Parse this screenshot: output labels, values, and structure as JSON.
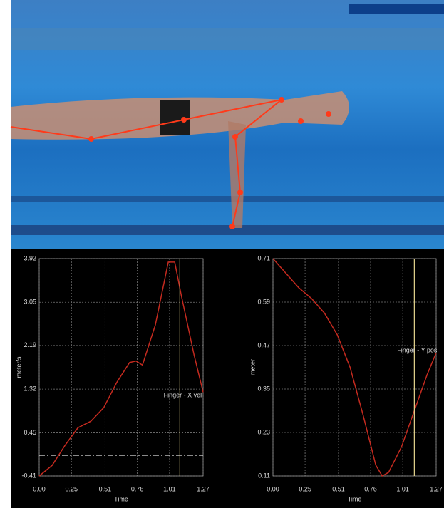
{
  "chart_data": [
    {
      "type": "line",
      "ylabel": "meter/s",
      "xlabel": "Time",
      "annotation": "Finger - X vel",
      "x": [
        0,
        0.1,
        0.2,
        0.3,
        0.4,
        0.5,
        0.6,
        0.7,
        0.75,
        0.8,
        0.9,
        1.0,
        1.05,
        1.1,
        1.2,
        1.27
      ],
      "series": [
        {
          "color": "#c42a1f",
          "values": [
            -0.41,
            -0.2,
            0.2,
            0.55,
            0.68,
            0.95,
            1.45,
            1.85,
            1.88,
            1.8,
            2.6,
            3.85,
            3.85,
            3.2,
            2.0,
            1.26
          ]
        }
      ],
      "xlim": [
        0,
        1.27
      ],
      "xticks": [
        {
          "value": 0,
          "label": "0.00"
        },
        0.25,
        0.51,
        0.76,
        1.01,
        1.27
      ],
      "ylim": [
        -0.41,
        3.92
      ],
      "yticks": [
        -0.41,
        0.45,
        1.32,
        2.19,
        3.05,
        3.92
      ],
      "cursor_x": 1.09,
      "ref_y": 0,
      "grid": true
    },
    {
      "type": "line",
      "ylabel": "meter",
      "xlabel": "Time",
      "annotation": "Finger - Y pos",
      "x": [
        0,
        0.1,
        0.2,
        0.3,
        0.4,
        0.5,
        0.6,
        0.7,
        0.8,
        0.85,
        0.9,
        1.0,
        1.1,
        1.2,
        1.27
      ],
      "series": [
        {
          "color": "#c42a1f",
          "values": [
            0.71,
            0.67,
            0.63,
            0.6,
            0.56,
            0.5,
            0.41,
            0.28,
            0.14,
            0.11,
            0.12,
            0.19,
            0.29,
            0.39,
            0.45
          ]
        }
      ],
      "xlim": [
        0,
        1.27
      ],
      "xticks": [
        {
          "value": 0,
          "label": "0.00"
        },
        0.25,
        0.51,
        0.76,
        1.01,
        1.27
      ],
      "ylim": [
        0.11,
        0.71
      ],
      "yticks": [
        0.11,
        0.23,
        0.35,
        0.47,
        0.59,
        0.71
      ],
      "cursor_x": 1.1,
      "grid": true
    }
  ]
}
